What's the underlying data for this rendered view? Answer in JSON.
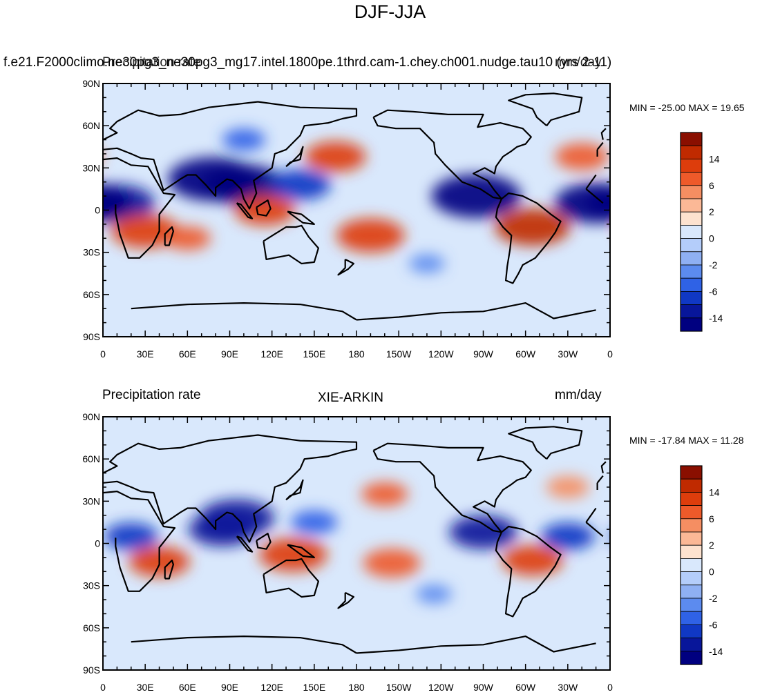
{
  "title": "DJF-JJA",
  "panels": [
    {
      "id": "model",
      "left_title": "f.e21.F2000climo.ne30pg3_ne30pg3_mg17.intel.1800pe.1thrd.cam-1.chey.ch001.nudge.tau10 (yrs 2-11)",
      "center_title": "Precipitation rate",
      "right_title": "mm/day",
      "stats": "MIN = -25.00 MAX =  19.65"
    },
    {
      "id": "obs",
      "left_title": "Precipitation rate",
      "center_title": "XIE-ARKIN",
      "right_title": "mm/day",
      "stats": "MIN = -17.84 MAX =  11.28"
    }
  ],
  "axes": {
    "lat_labels": [
      "90N",
      "60N",
      "30N",
      "0",
      "30S",
      "60S",
      "90S"
    ],
    "lon_labels": [
      "0",
      "30E",
      "60E",
      "90E",
      "120E",
      "150E",
      "180",
      "150W",
      "120W",
      "90W",
      "60W",
      "30W",
      "0"
    ]
  },
  "colorbar": {
    "labels": [
      "14",
      "6",
      "2",
      "0",
      "-2",
      "-6",
      "-14"
    ],
    "colors": [
      "#8a0f00",
      "#c02a00",
      "#dd3d0c",
      "#ee5a2a",
      "#f58e62",
      "#fbb896",
      "#fde2cf",
      "#d9e8fc",
      "#b4cdfa",
      "#8fb0f3",
      "#5c8bef",
      "#2f62e6",
      "#1038c4",
      "#08169a",
      "#000080"
    ]
  },
  "chart_data": [
    {
      "type": "heatmap",
      "title": "Precipitation rate",
      "subtitle": "f.e21.F2000climo.ne30pg3_ne30pg3_mg17.intel.1800pe.1thrd.cam-1.chey.ch001.nudge.tau10 (yrs 2-11)",
      "units": "mm/day",
      "xlim": [
        0,
        360
      ],
      "ylim": [
        -90,
        90
      ],
      "levels": [
        -16,
        -14,
        -10,
        -6,
        -4,
        -2,
        -1,
        0,
        1,
        2,
        4,
        6,
        10,
        14,
        16
      ],
      "min": -25.0,
      "max": 19.65,
      "features": [
        {
          "lon": 10,
          "lat": 5,
          "v": -14
        },
        {
          "lon": 30,
          "lat": -15,
          "v": 12
        },
        {
          "lon": 78,
          "lat": 22,
          "v": -18
        },
        {
          "lon": 100,
          "lat": 18,
          "v": -16
        },
        {
          "lon": 115,
          "lat": 0,
          "v": 10
        },
        {
          "lon": 165,
          "lat": 38,
          "v": 10
        },
        {
          "lon": 140,
          "lat": 18,
          "v": -10
        },
        {
          "lon": 190,
          "lat": -18,
          "v": 12
        },
        {
          "lon": 265,
          "lat": 10,
          "v": -18
        },
        {
          "lon": 305,
          "lat": -12,
          "v": 14
        },
        {
          "lon": 340,
          "lat": 38,
          "v": 8
        },
        {
          "lon": 350,
          "lat": 5,
          "v": -16
        },
        {
          "lon": 60,
          "lat": -20,
          "v": 6
        },
        {
          "lon": 230,
          "lat": -38,
          "v": -3
        },
        {
          "lon": 100,
          "lat": 50,
          "v": -5
        }
      ]
    },
    {
      "type": "heatmap",
      "title": "Precipitation rate",
      "subtitle": "XIE-ARKIN",
      "units": "mm/day",
      "xlim": [
        0,
        360
      ],
      "ylim": [
        -90,
        90
      ],
      "levels": [
        -16,
        -14,
        -10,
        -6,
        -4,
        -2,
        -1,
        0,
        1,
        2,
        4,
        6,
        10,
        14,
        16
      ],
      "min": -17.84,
      "max": 11.28,
      "features": [
        {
          "lon": 20,
          "lat": 5,
          "v": -8
        },
        {
          "lon": 40,
          "lat": -13,
          "v": 10
        },
        {
          "lon": 95,
          "lat": 18,
          "v": -14
        },
        {
          "lon": 85,
          "lat": 10,
          "v": -12
        },
        {
          "lon": 135,
          "lat": -8,
          "v": 12
        },
        {
          "lon": 200,
          "lat": 35,
          "v": 6
        },
        {
          "lon": 205,
          "lat": -14,
          "v": 9
        },
        {
          "lon": 270,
          "lat": 8,
          "v": -12
        },
        {
          "lon": 305,
          "lat": -12,
          "v": 10
        },
        {
          "lon": 330,
          "lat": 5,
          "v": -8
        },
        {
          "lon": 330,
          "lat": 40,
          "v": 5
        },
        {
          "lon": 150,
          "lat": 15,
          "v": -6
        },
        {
          "lon": 235,
          "lat": -36,
          "v": -3
        }
      ]
    }
  ]
}
